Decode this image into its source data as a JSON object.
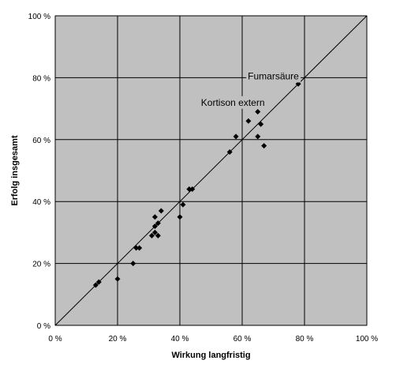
{
  "chart_data": {
    "type": "scatter",
    "xlabel": "Wirkung langfristig",
    "ylabel": "Erfolg insgesamt",
    "xlim": [
      0,
      100
    ],
    "ylim": [
      0,
      100
    ],
    "x_ticks": [
      "0 %",
      "20 %",
      "40 %",
      "60 %",
      "80 %",
      "100 %"
    ],
    "y_ticks": [
      "0 %",
      "20 %",
      "40 %",
      "60 %",
      "80 %",
      "100 %"
    ],
    "grid": true,
    "reference_line": {
      "from": [
        0,
        0
      ],
      "to": [
        100,
        100
      ]
    },
    "annotations": [
      {
        "text": "Fumarsäure",
        "x": 70,
        "y": 80.5
      },
      {
        "text": "Kortison extern",
        "x": 57,
        "y": 72
      }
    ],
    "series": [
      {
        "points": [
          [
            13,
            13
          ],
          [
            14,
            14
          ],
          [
            20,
            15
          ],
          [
            25,
            20
          ],
          [
            26,
            25
          ],
          [
            27,
            25
          ],
          [
            31,
            29
          ],
          [
            32,
            30
          ],
          [
            32,
            32
          ],
          [
            32,
            35
          ],
          [
            33,
            29
          ],
          [
            33,
            33
          ],
          [
            34,
            37
          ],
          [
            40,
            35
          ],
          [
            41,
            39
          ],
          [
            43,
            44
          ],
          [
            44,
            44
          ],
          [
            56,
            56
          ],
          [
            58,
            61
          ],
          [
            62,
            66
          ],
          [
            65,
            69
          ],
          [
            65,
            61
          ],
          [
            66,
            65
          ],
          [
            67,
            58
          ],
          [
            78,
            78
          ]
        ]
      }
    ],
    "colors": {
      "plot_background": "#c0c0c0",
      "gridline": "#000000",
      "marker": "#000000",
      "reference_line": "#000000"
    }
  }
}
